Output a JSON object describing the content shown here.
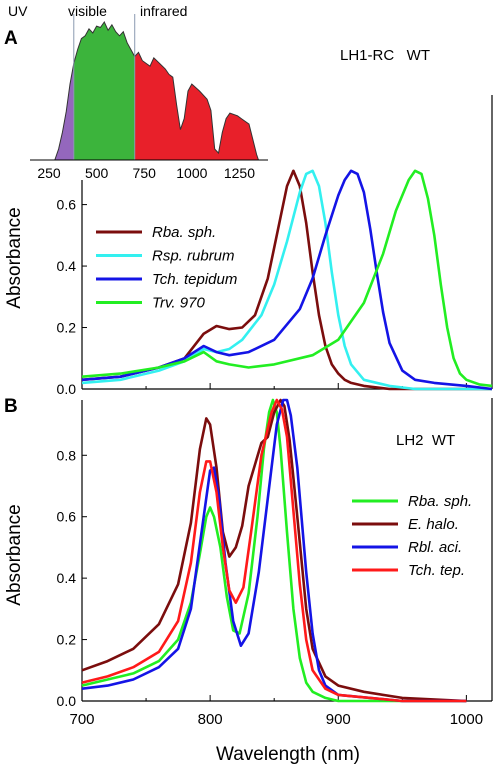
{
  "colors": {
    "rba_sph": "#7b0d0d",
    "rsp_rubrum": "#33f0f0",
    "tch_tepidum": "#1414e6",
    "trv_970": "#22ee22",
    "tch_tep": "#ff1a1a",
    "solar_uv": "#9467bd",
    "solar_visible": "#3cb43c",
    "solar_infrared": "#e8202a"
  },
  "chart_data": [
    {
      "type": "area",
      "panel": "inset",
      "region_labels": [
        "UV",
        "visible",
        "infrared"
      ],
      "x_ticks": [
        "250",
        "500",
        "750",
        "1000",
        "1250"
      ],
      "xlim": [
        150,
        1400
      ],
      "ylim": [
        0,
        1
      ],
      "regions": [
        {
          "name": "UV",
          "from": 280,
          "to": 380
        },
        {
          "name": "visible",
          "from": 380,
          "to": 700
        },
        {
          "name": "infrared",
          "from": 700,
          "to": 1350
        }
      ],
      "x": [
        150,
        280,
        300,
        320,
        340,
        360,
        380,
        400,
        420,
        440,
        460,
        480,
        500,
        520,
        540,
        560,
        580,
        600,
        620,
        640,
        660,
        680,
        700,
        720,
        740,
        760,
        780,
        800,
        830,
        860,
        880,
        900,
        920,
        940,
        960,
        980,
        1000,
        1040,
        1080,
        1100,
        1120,
        1140,
        1160,
        1180,
        1200,
        1240,
        1260,
        1300,
        1340,
        1350,
        1400
      ],
      "y": [
        0,
        0,
        0.08,
        0.2,
        0.35,
        0.55,
        0.7,
        0.8,
        0.88,
        0.9,
        0.95,
        0.92,
        0.97,
        0.96,
        1.0,
        0.94,
        0.98,
        0.93,
        0.9,
        0.93,
        0.85,
        0.8,
        0.75,
        0.78,
        0.72,
        0.7,
        0.68,
        0.74,
        0.7,
        0.66,
        0.62,
        0.6,
        0.4,
        0.22,
        0.3,
        0.5,
        0.55,
        0.5,
        0.44,
        0.36,
        0.08,
        0.05,
        0.2,
        0.3,
        0.34,
        0.32,
        0.3,
        0.26,
        0.04,
        0,
        0
      ]
    },
    {
      "type": "line",
      "panel": "A",
      "panel_label": "A",
      "annotation": "LH1-RC   WT",
      "ylabel": "Absorbance",
      "xlim": [
        700,
        1020
      ],
      "ylim": [
        0,
        0.68
      ],
      "y_ticks": [
        "0.0",
        "0.2",
        "0.4",
        "0.6"
      ],
      "y_tick_values": [
        0,
        0.2,
        0.4,
        0.6
      ],
      "series": [
        {
          "name": "Rba. sph.",
          "x": [
            700,
            730,
            760,
            780,
            795,
            805,
            815,
            825,
            835,
            845,
            855,
            860,
            865,
            870,
            875,
            880,
            885,
            890,
            895,
            900,
            905,
            910,
            920,
            940,
            960,
            1000,
            1020
          ],
          "y": [
            0.03,
            0.04,
            0.07,
            0.1,
            0.18,
            0.205,
            0.195,
            0.2,
            0.24,
            0.36,
            0.56,
            0.66,
            0.71,
            0.66,
            0.54,
            0.38,
            0.24,
            0.14,
            0.08,
            0.05,
            0.03,
            0.02,
            0.01,
            0.0,
            0.0,
            0.0,
            0.0
          ]
        },
        {
          "name": "Rsp. rubrum",
          "x": [
            700,
            730,
            760,
            780,
            795,
            805,
            815,
            825,
            840,
            850,
            860,
            870,
            875,
            880,
            885,
            890,
            895,
            900,
            905,
            910,
            920,
            940,
            960,
            1000,
            1020
          ],
          "y": [
            0.02,
            0.03,
            0.06,
            0.09,
            0.13,
            0.12,
            0.13,
            0.16,
            0.24,
            0.34,
            0.48,
            0.64,
            0.7,
            0.71,
            0.66,
            0.54,
            0.38,
            0.24,
            0.14,
            0.08,
            0.03,
            0.01,
            0.0,
            0.0,
            0.0
          ]
        },
        {
          "name": "Tch. tepidum",
          "x": [
            700,
            730,
            760,
            780,
            795,
            805,
            815,
            830,
            850,
            870,
            880,
            890,
            900,
            905,
            910,
            915,
            920,
            925,
            930,
            935,
            940,
            950,
            960,
            975,
            1000,
            1020
          ],
          "y": [
            0.03,
            0.04,
            0.07,
            0.1,
            0.14,
            0.12,
            0.11,
            0.12,
            0.16,
            0.26,
            0.36,
            0.5,
            0.63,
            0.68,
            0.71,
            0.7,
            0.64,
            0.52,
            0.38,
            0.25,
            0.15,
            0.06,
            0.03,
            0.02,
            0.01,
            0.0
          ]
        },
        {
          "name": "Trv. 970",
          "x": [
            700,
            730,
            760,
            780,
            795,
            805,
            815,
            830,
            850,
            880,
            900,
            920,
            935,
            945,
            955,
            960,
            965,
            970,
            975,
            980,
            985,
            990,
            995,
            1000,
            1010,
            1020
          ],
          "y": [
            0.04,
            0.05,
            0.07,
            0.09,
            0.12,
            0.09,
            0.08,
            0.07,
            0.08,
            0.11,
            0.16,
            0.28,
            0.44,
            0.58,
            0.68,
            0.71,
            0.7,
            0.62,
            0.5,
            0.34,
            0.2,
            0.1,
            0.05,
            0.03,
            0.015,
            0.01
          ]
        }
      ]
    },
    {
      "type": "line",
      "panel": "B",
      "panel_label": "B",
      "annotation": "LH2  WT",
      "xlabel": "Wavelength (nm)",
      "ylabel": "Absorbance",
      "xlim": [
        700,
        1020
      ],
      "ylim": [
        0,
        0.98
      ],
      "x_ticks": [
        "700",
        "800",
        "900",
        "1000"
      ],
      "x_tick_values": [
        700,
        800,
        900,
        1000
      ],
      "y_ticks": [
        "0.0",
        "0.2",
        "0.4",
        "0.6",
        "0.8"
      ],
      "y_tick_values": [
        0,
        0.2,
        0.4,
        0.6,
        0.8
      ],
      "series": [
        {
          "name": "Rba. sph.",
          "x": [
            700,
            720,
            740,
            760,
            775,
            785,
            792,
            797,
            800,
            803,
            808,
            813,
            818,
            823,
            830,
            837,
            842,
            846,
            849,
            852,
            855,
            860,
            865,
            870,
            875,
            880,
            890,
            900,
            950,
            1000
          ],
          "y": [
            0.05,
            0.07,
            0.09,
            0.13,
            0.2,
            0.32,
            0.48,
            0.6,
            0.63,
            0.6,
            0.5,
            0.34,
            0.23,
            0.22,
            0.35,
            0.6,
            0.82,
            0.94,
            0.98,
            0.94,
            0.82,
            0.55,
            0.3,
            0.14,
            0.06,
            0.03,
            0.01,
            0.0,
            0.0,
            0.0
          ]
        },
        {
          "name": "E. halo.",
          "x": [
            700,
            720,
            740,
            760,
            775,
            785,
            792,
            797,
            800,
            805,
            810,
            815,
            820,
            825,
            830,
            840,
            845,
            850,
            855,
            858,
            862,
            868,
            875,
            880,
            890,
            900,
            920,
            950,
            1000
          ],
          "y": [
            0.1,
            0.13,
            0.17,
            0.25,
            0.38,
            0.58,
            0.82,
            0.92,
            0.9,
            0.76,
            0.55,
            0.47,
            0.5,
            0.57,
            0.7,
            0.84,
            0.86,
            0.94,
            0.98,
            0.96,
            0.85,
            0.6,
            0.3,
            0.17,
            0.08,
            0.05,
            0.03,
            0.01,
            0.0
          ]
        },
        {
          "name": "Rbl. aci.",
          "x": [
            700,
            720,
            740,
            760,
            775,
            785,
            795,
            800,
            803,
            807,
            812,
            818,
            824,
            830,
            838,
            845,
            852,
            857,
            860,
            863,
            868,
            875,
            880,
            885,
            890,
            900,
            950,
            1000
          ],
          "y": [
            0.04,
            0.05,
            0.07,
            0.11,
            0.17,
            0.3,
            0.6,
            0.75,
            0.76,
            0.66,
            0.45,
            0.26,
            0.18,
            0.22,
            0.42,
            0.66,
            0.9,
            0.98,
            0.98,
            0.93,
            0.76,
            0.42,
            0.22,
            0.1,
            0.05,
            0.02,
            0.0,
            0.0
          ]
        },
        {
          "name": "Tch. tep.",
          "x": [
            700,
            720,
            740,
            760,
            775,
            785,
            792,
            797,
            800,
            805,
            810,
            815,
            820,
            826,
            832,
            840,
            848,
            852,
            856,
            860,
            865,
            870,
            875,
            880,
            890,
            900,
            950,
            1000
          ],
          "y": [
            0.06,
            0.08,
            0.11,
            0.16,
            0.26,
            0.45,
            0.68,
            0.78,
            0.78,
            0.68,
            0.5,
            0.36,
            0.32,
            0.37,
            0.55,
            0.8,
            0.94,
            0.98,
            0.95,
            0.86,
            0.62,
            0.38,
            0.2,
            0.1,
            0.04,
            0.02,
            0.0,
            0.0
          ]
        }
      ]
    }
  ]
}
